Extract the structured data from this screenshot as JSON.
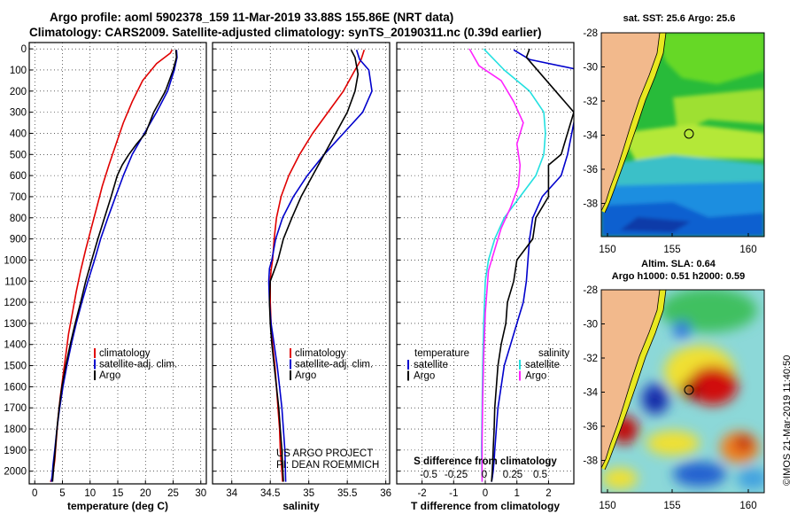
{
  "header": {
    "title_line1": "Argo profile: aoml 5902378_159 11-Mar-2019 33.88S 155.86E (NRT data)",
    "title_line2": "Climatology: CARS2009. Satellite-adjusted climatology: synTS_20190311.nc (0.39d earlier)"
  },
  "colors": {
    "clim": "#e00000",
    "sat": "#0000cc",
    "argo": "#000000",
    "sat_s": "#22e0e0",
    "argo_s": "#ff22ff"
  },
  "chart_data": [
    {
      "type": "line",
      "title": "temperature profile",
      "xlabel": "temperature (deg C)",
      "ylabel": "",
      "xlim": [
        -1,
        31
      ],
      "ylim": [
        2060,
        -30
      ],
      "xticks": [
        0,
        5,
        10,
        15,
        20,
        25,
        30
      ],
      "yticks": [
        0,
        100,
        200,
        300,
        400,
        500,
        600,
        700,
        800,
        900,
        1000,
        1100,
        1200,
        1300,
        1400,
        1500,
        1600,
        1700,
        1800,
        1900,
        2000
      ],
      "legend": [
        "climatology",
        "satellite-adj. clim.",
        "Argo"
      ],
      "series": [
        {
          "name": "climatology",
          "color": "#e00000",
          "x": [
            24.8,
            24.5,
            22.0,
            19.5,
            17.6,
            16.0,
            14.7,
            13.4,
            12.2,
            11.2,
            10.2,
            9.2,
            8.3,
            7.5,
            6.8,
            6.1,
            5.6,
            5.1,
            4.6,
            4.2,
            3.9,
            3.6,
            3.35,
            3.15,
            2.95,
            2.8
          ],
          "y": [
            5,
            20,
            70,
            150,
            250,
            350,
            450,
            550,
            650,
            750,
            850,
            950,
            1050,
            1150,
            1250,
            1350,
            1450,
            1550,
            1650,
            1750,
            1850,
            1950,
            2000,
            2030,
            2045,
            2050
          ]
        },
        {
          "name": "satellite-adj. clim.",
          "color": "#0000cc",
          "x": [
            25.6,
            25.7,
            25.2,
            24.0,
            22.0,
            19.8,
            17.6,
            16.0,
            14.6,
            13.2,
            11.9,
            10.8,
            9.6,
            8.5,
            7.5,
            6.6,
            5.8,
            5.1,
            4.5,
            4.0,
            3.6,
            3.3,
            3.15,
            3.0
          ],
          "y": [
            5,
            40,
            100,
            200,
            300,
            400,
            500,
            600,
            700,
            800,
            900,
            1000,
            1100,
            1200,
            1300,
            1400,
            1500,
            1600,
            1700,
            1800,
            1900,
            1970,
            2020,
            2050
          ]
        },
        {
          "name": "Argo",
          "color": "#000000",
          "x": [
            25.5,
            25.6,
            25.0,
            23.6,
            21.5,
            20.0,
            18.4,
            17.0,
            15.8,
            14.9,
            13.8,
            12.6,
            11.4,
            10.3,
            9.2,
            8.3,
            7.3,
            6.4,
            5.6,
            4.9,
            4.4,
            4.0,
            3.7,
            3.45,
            3.3,
            3.2
          ],
          "y": [
            5,
            40,
            100,
            200,
            300,
            400,
            450,
            500,
            550,
            600,
            700,
            800,
            900,
            1000,
            1100,
            1200,
            1300,
            1400,
            1500,
            1600,
            1700,
            1800,
            1900,
            1970,
            2020,
            2050
          ]
        }
      ]
    },
    {
      "type": "line",
      "title": "salinity profile",
      "xlabel": "salinity",
      "xlim": [
        33.75,
        36.05
      ],
      "ylim": [
        2060,
        -30
      ],
      "xticks": [
        34,
        34.5,
        35,
        35.5,
        36
      ],
      "legend": [
        "climatology",
        "satellite-adj. clim.",
        "Argo"
      ],
      "series": [
        {
          "name": "climatology",
          "color": "#e00000",
          "x": [
            35.72,
            35.68,
            35.6,
            35.45,
            35.25,
            35.05,
            34.88,
            34.74,
            34.64,
            34.58,
            34.55,
            34.53,
            34.51,
            34.5,
            34.5,
            34.51,
            34.53,
            34.56,
            34.58,
            34.6,
            34.62,
            34.63,
            34.64,
            34.65,
            34.66
          ],
          "y": [
            5,
            50,
            100,
            200,
            300,
            400,
            500,
            600,
            700,
            800,
            900,
            1000,
            1050,
            1100,
            1200,
            1300,
            1400,
            1500,
            1600,
            1700,
            1800,
            1900,
            1950,
            2000,
            2050
          ]
        },
        {
          "name": "satellite-adj. clim.",
          "color": "#0000cc",
          "x": [
            35.62,
            35.66,
            35.78,
            35.82,
            35.7,
            35.45,
            35.2,
            34.98,
            34.8,
            34.66,
            34.57,
            34.52,
            34.49,
            34.48,
            34.49,
            34.51,
            34.55,
            34.59,
            34.62,
            34.65,
            34.67,
            34.69,
            34.7
          ],
          "y": [
            5,
            50,
            100,
            200,
            300,
            400,
            500,
            600,
            700,
            800,
            900,
            1000,
            1040,
            1100,
            1200,
            1300,
            1400,
            1500,
            1600,
            1700,
            1800,
            1900,
            2050
          ]
        },
        {
          "name": "Argo",
          "color": "#000000",
          "x": [
            35.55,
            35.6,
            35.64,
            35.6,
            35.5,
            35.35,
            35.2,
            35.05,
            34.9,
            34.78,
            34.67,
            34.6,
            34.55,
            34.5,
            34.49,
            34.5,
            34.52,
            34.55,
            34.58,
            34.61,
            34.63,
            34.65,
            34.67
          ],
          "y": [
            5,
            40,
            120,
            200,
            300,
            400,
            500,
            600,
            700,
            800,
            900,
            1000,
            1050,
            1100,
            1200,
            1300,
            1400,
            1500,
            1600,
            1700,
            1800,
            1900,
            2050
          ]
        }
      ]
    },
    {
      "type": "line",
      "title": "difference from climatology",
      "xlabel": "T difference from climatology",
      "xlabel_s": "S difference from climatology",
      "xlim": [
        -2.8,
        2.8
      ],
      "ylim": [
        2060,
        -30
      ],
      "xticks": [
        -2,
        -1,
        0,
        1,
        2
      ],
      "xticks_s": [
        "-0.5",
        "-0.25",
        "0",
        "0.25",
        "0.5"
      ],
      "legend_t_header": "temperature",
      "legend_s_header": "salinity",
      "legend_t": [
        "satellite",
        "Argo"
      ],
      "legend_s": [
        "satellite",
        "Argo"
      ],
      "series": [
        {
          "name": "temperature satellite",
          "color": "#0000cc",
          "x": [
            0.9,
            1.4,
            3.0,
            3.0,
            2.6,
            2.4,
            1.8,
            1.5,
            1.4,
            1.35,
            1.3,
            1.2,
            1.0,
            0.8,
            0.6,
            0.5,
            0.4,
            0.35,
            0.3,
            0.28,
            0.25,
            0.22,
            0.2
          ],
          "y": [
            5,
            50,
            100,
            200,
            500,
            600,
            700,
            800,
            900,
            1000,
            1100,
            1200,
            1300,
            1400,
            1500,
            1600,
            1700,
            1800,
            1900,
            1950,
            2000,
            2030,
            2050
          ]
        },
        {
          "name": "temperature Argo",
          "color": "#000000",
          "x": [
            1.4,
            1.3,
            2.8,
            2.4,
            2.0,
            2.0,
            1.6,
            1.5,
            1.0,
            0.9,
            0.7,
            0.65,
            0.5,
            0.4,
            0.35,
            0.3,
            0.28,
            0.25,
            0.22,
            0.2
          ],
          "y": [
            0,
            40,
            300,
            500,
            550,
            700,
            800,
            900,
            1000,
            1100,
            1200,
            1300,
            1400,
            1500,
            1600,
            1700,
            1800,
            1900,
            2000,
            2050
          ]
        },
        {
          "name": "salinity satellite",
          "color": "#22e0e0",
          "x": [
            -0.05,
            0.6,
            1.4,
            1.85,
            1.9,
            1.85,
            1.6,
            1.1,
            0.6,
            0.3,
            0.1,
            0.0,
            -0.05,
            -0.08,
            -0.1,
            -0.12,
            -0.1
          ],
          "y": [
            0,
            100,
            200,
            300,
            400,
            500,
            600,
            700,
            800,
            900,
            1000,
            1100,
            1300,
            1500,
            1700,
            1900,
            2050
          ]
        },
        {
          "name": "salinity Argo",
          "color": "#ff22ff",
          "x": [
            -0.5,
            -0.2,
            0.5,
            0.9,
            1.2,
            1.0,
            1.1,
            1.05,
            0.8,
            0.5,
            0.3,
            0.1,
            0.0,
            -0.05,
            -0.08,
            -0.1,
            -0.1
          ],
          "y": [
            0,
            80,
            150,
            250,
            350,
            450,
            550,
            650,
            750,
            850,
            950,
            1050,
            1250,
            1450,
            1650,
            1850,
            2050
          ]
        }
      ]
    }
  ],
  "maps": {
    "sst_title": "sat. SST: 25.6 Argo: 25.6",
    "sla_title1": "Altim. SLA: 0.64",
    "sla_title2": "Argo h1000: 0.51 h2000: 0.59",
    "lon_ticks": [
      "150",
      "155",
      "160"
    ],
    "lat_ticks": [
      "-28",
      "-30",
      "-32",
      "-34",
      "-36",
      "-38"
    ],
    "argo_position": "33.88S 155.86E"
  },
  "credits": {
    "project": "US ARGO PROJECT",
    "pi": "PI: DEAN ROEMMICH",
    "imos": "©IMOS 21-Mar-2019 11:40:50"
  }
}
